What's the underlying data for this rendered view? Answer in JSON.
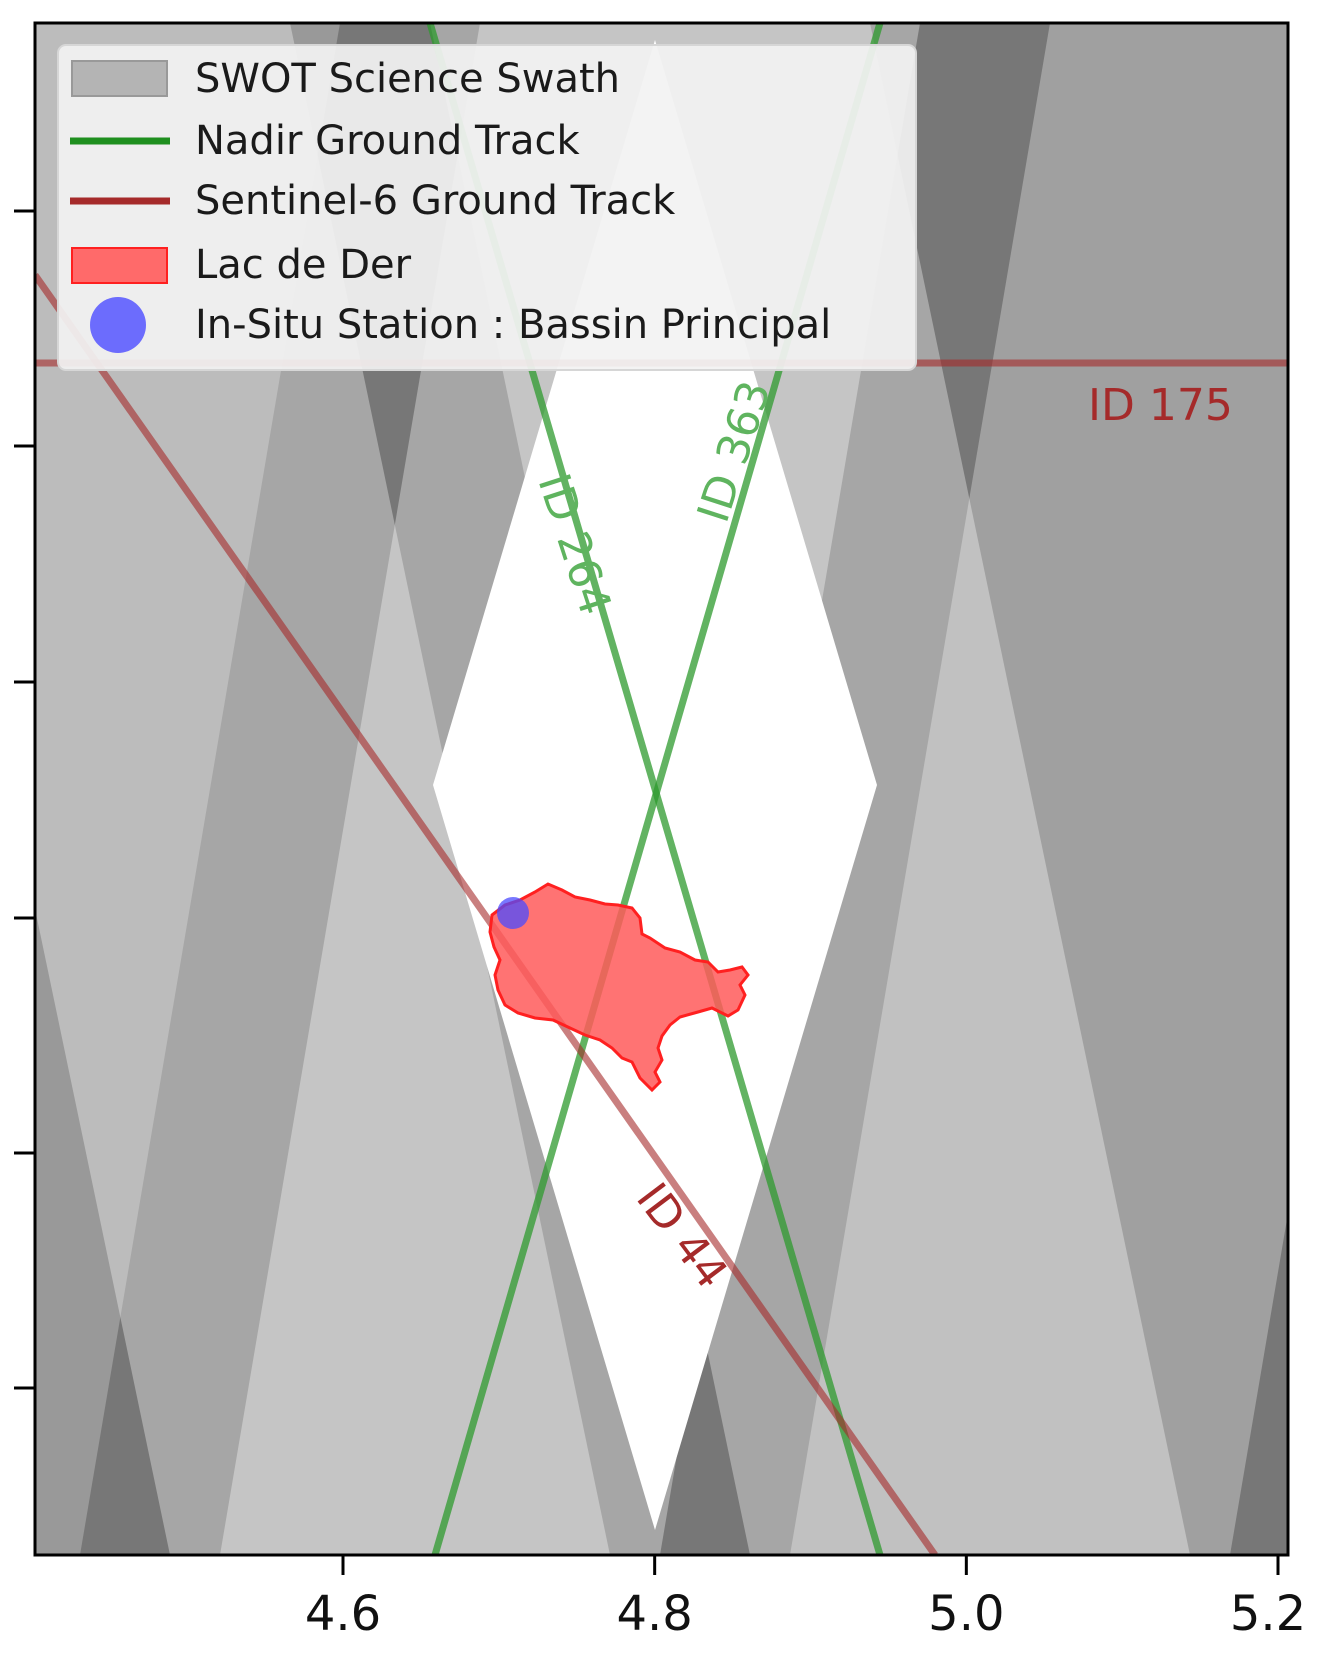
{
  "legend": {
    "swath": "SWOT Science Swath",
    "nadir": "Nadir Ground Track",
    "sentinel": "Sentinel-6 Ground Track",
    "lake": "Lac de Der",
    "station": "In-Situ Station : Bassin Principal"
  },
  "track_labels": {
    "id175": "ID 175",
    "id363": "ID 363",
    "id264": "ID 264",
    "id44": "ID 44"
  },
  "x_axis": {
    "ticks": [
      4.6,
      4.8,
      5.0,
      5.2
    ],
    "tick_labels": [
      "4.6",
      "4.8",
      "5.0",
      "5.2"
    ]
  },
  "colors": {
    "swath": "#8c8c8c",
    "nadir": "#2e9a2e",
    "sentinel": "#a52a2a",
    "lake": "#ff5a5a",
    "lake_edge": "#ff2020",
    "station": "#4b4bff",
    "track_label_red": "#a52a2a",
    "track_label_green": "#5fb45f"
  },
  "icons": {
    "station": "circle-marker",
    "swath": "gray-rectangle-swatch",
    "lake": "red-rectangle-swatch",
    "nadir": "green-line-swatch",
    "sentinel": "red-line-swatch"
  }
}
